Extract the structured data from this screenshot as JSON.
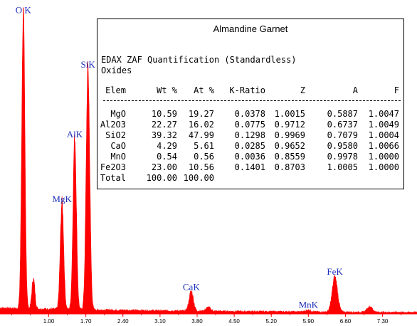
{
  "chart_data": {
    "type": "area",
    "title": "",
    "xlabel": "",
    "ylabel": "",
    "xlim": [
      0.08,
      7.95
    ],
    "ylim": [
      0,
      1000
    ],
    "x_ticks": [
      "1.00",
      "1.70",
      "2.40",
      "3.10",
      "3.80",
      "4.50",
      "5.20",
      "5.90",
      "6.60",
      "7.30"
    ],
    "series_color": "#ff0000",
    "background": 12,
    "peaks": [
      {
        "label": "O K",
        "x": 0.52,
        "y": 980,
        "width": 0.03
      },
      {
        "label": "",
        "x": 0.71,
        "y": 100,
        "width": 0.028
      },
      {
        "label": "MgK",
        "x": 1.25,
        "y": 355,
        "width": 0.032
      },
      {
        "label": "AlK",
        "x": 1.49,
        "y": 570,
        "width": 0.032
      },
      {
        "label": "SiK",
        "x": 1.74,
        "y": 800,
        "width": 0.034
      },
      {
        "label": "CaK",
        "x": 3.69,
        "y": 65,
        "width": 0.04
      },
      {
        "label": "",
        "x": 4.01,
        "y": 12,
        "width": 0.045
      },
      {
        "label": "MnK",
        "x": 5.9,
        "y": 6,
        "width": 0.05
      },
      {
        "label": "FeK",
        "x": 6.4,
        "y": 115,
        "width": 0.05
      },
      {
        "label": "",
        "x": 7.06,
        "y": 18,
        "width": 0.05
      }
    ]
  },
  "quant_box": {
    "title": "Almandine Garnet",
    "heading": "EDAX ZAF Quantification (Standardless)",
    "subheading": "Oxides",
    "columns": [
      "Elem",
      "Wt %",
      "At %",
      "K-Ratio",
      "Z",
      "A",
      "F"
    ],
    "rows": [
      [
        "MgO",
        "10.59",
        "19.27",
        "0.0378",
        "1.0015",
        "0.5887",
        "1.0047"
      ],
      [
        "Al2O3",
        "22.27",
        "16.02",
        "0.0775",
        "0.9712",
        "0.6737",
        "1.0049"
      ],
      [
        "SiO2",
        "39.32",
        "47.99",
        "0.1298",
        "0.9969",
        "0.7079",
        "1.0004"
      ],
      [
        "CaO",
        "4.29",
        "5.61",
        "0.0285",
        "0.9652",
        "0.9580",
        "1.0066"
      ],
      [
        "MnO",
        "0.54",
        "0.56",
        "0.0036",
        "0.8559",
        "0.9978",
        "1.0000"
      ],
      [
        "Fe2O3",
        "23.00",
        "10.56",
        "0.1401",
        "0.8703",
        "1.0005",
        "1.0000"
      ]
    ],
    "total": [
      "Total",
      "100.00",
      "100.00"
    ]
  }
}
